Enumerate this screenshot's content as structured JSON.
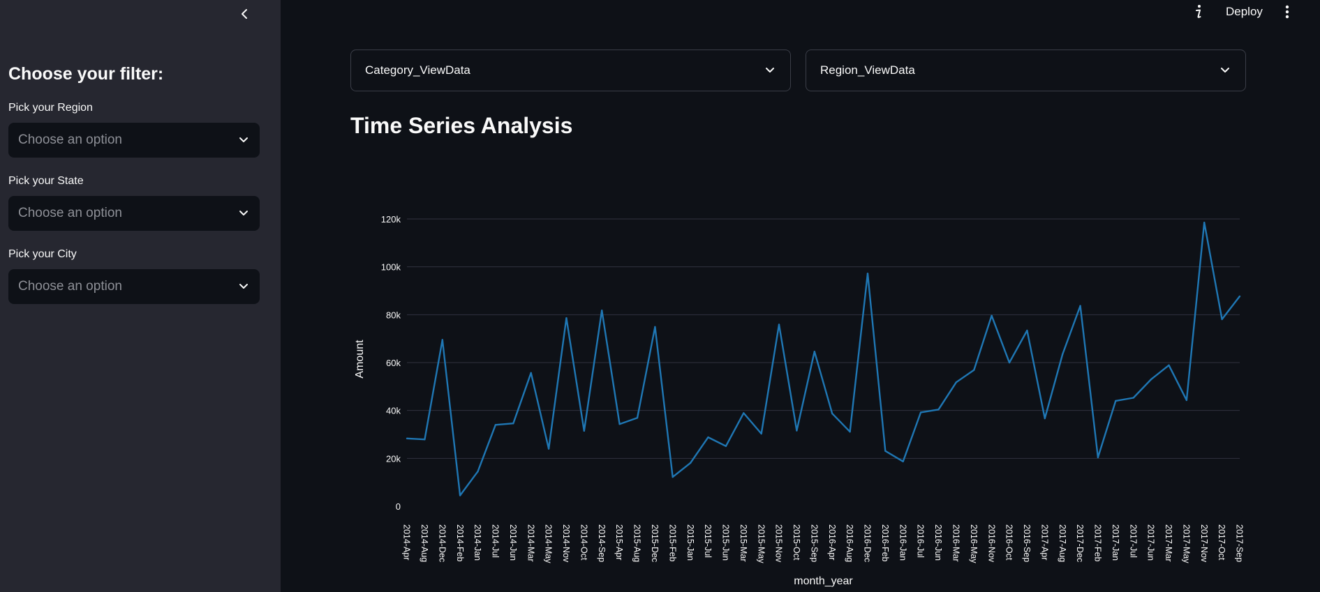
{
  "sidebar": {
    "title": "Choose your filter:",
    "filters": [
      {
        "label": "Pick your Region",
        "placeholder": "Choose an option"
      },
      {
        "label": "Pick your State",
        "placeholder": "Choose an option"
      },
      {
        "label": "Pick your City",
        "placeholder": "Choose an option"
      }
    ]
  },
  "topbar": {
    "deploy_label": "Deploy"
  },
  "expanders": [
    {
      "label": "Category_ViewData"
    },
    {
      "label": "Region_ViewData"
    }
  ],
  "main": {
    "title": "Time Series Analysis"
  },
  "chart_data": {
    "type": "line",
    "xlabel": "month_year",
    "ylabel": "Amount",
    "ylim": [
      0,
      120000
    ],
    "yticks": [
      0,
      20000,
      40000,
      60000,
      80000,
      100000,
      120000
    ],
    "ytick_labels": [
      "0",
      "20k",
      "40k",
      "60k",
      "80k",
      "100k",
      "120k"
    ],
    "grid": true,
    "line_color": "#1f77b4",
    "categories": [
      "2014-Apr",
      "2014-Aug",
      "2014-Dec",
      "2014-Feb",
      "2014-Jan",
      "2014-Jul",
      "2014-Jun",
      "2014-Mar",
      "2014-May",
      "2014-Nov",
      "2014-Oct",
      "2014-Sep",
      "2015-Apr",
      "2015-Aug",
      "2015-Dec",
      "2015-Feb",
      "2015-Jan",
      "2015-Jul",
      "2015-Jun",
      "2015-Mar",
      "2015-May",
      "2015-Nov",
      "2015-Oct",
      "2015-Sep",
      "2016-Apr",
      "2016-Aug",
      "2016-Dec",
      "2016-Feb",
      "2016-Jan",
      "2016-Jul",
      "2016-Jun",
      "2016-Mar",
      "2016-May",
      "2016-Nov",
      "2016-Oct",
      "2016-Sep",
      "2017-Apr",
      "2017-Aug",
      "2017-Dec",
      "2017-Feb",
      "2017-Jan",
      "2017-Jul",
      "2017-Jun",
      "2017-Mar",
      "2017-May",
      "2017-Nov",
      "2017-Oct",
      "2017-Sep"
    ],
    "values": [
      28300,
      27900,
      69500,
      4500,
      14500,
      34000,
      34600,
      55700,
      24000,
      78600,
      31500,
      81800,
      34300,
      36900,
      74900,
      12200,
      18100,
      28800,
      25100,
      38900,
      30300,
      75900,
      31600,
      64600,
      38700,
      31100,
      97200,
      23100,
      18700,
      39200,
      40400,
      51800,
      56900,
      79600,
      60000,
      73400,
      36700,
      63500,
      83700,
      20400,
      44000,
      45300,
      53000,
      58900,
      44300,
      118500,
      78100,
      87700
    ]
  }
}
